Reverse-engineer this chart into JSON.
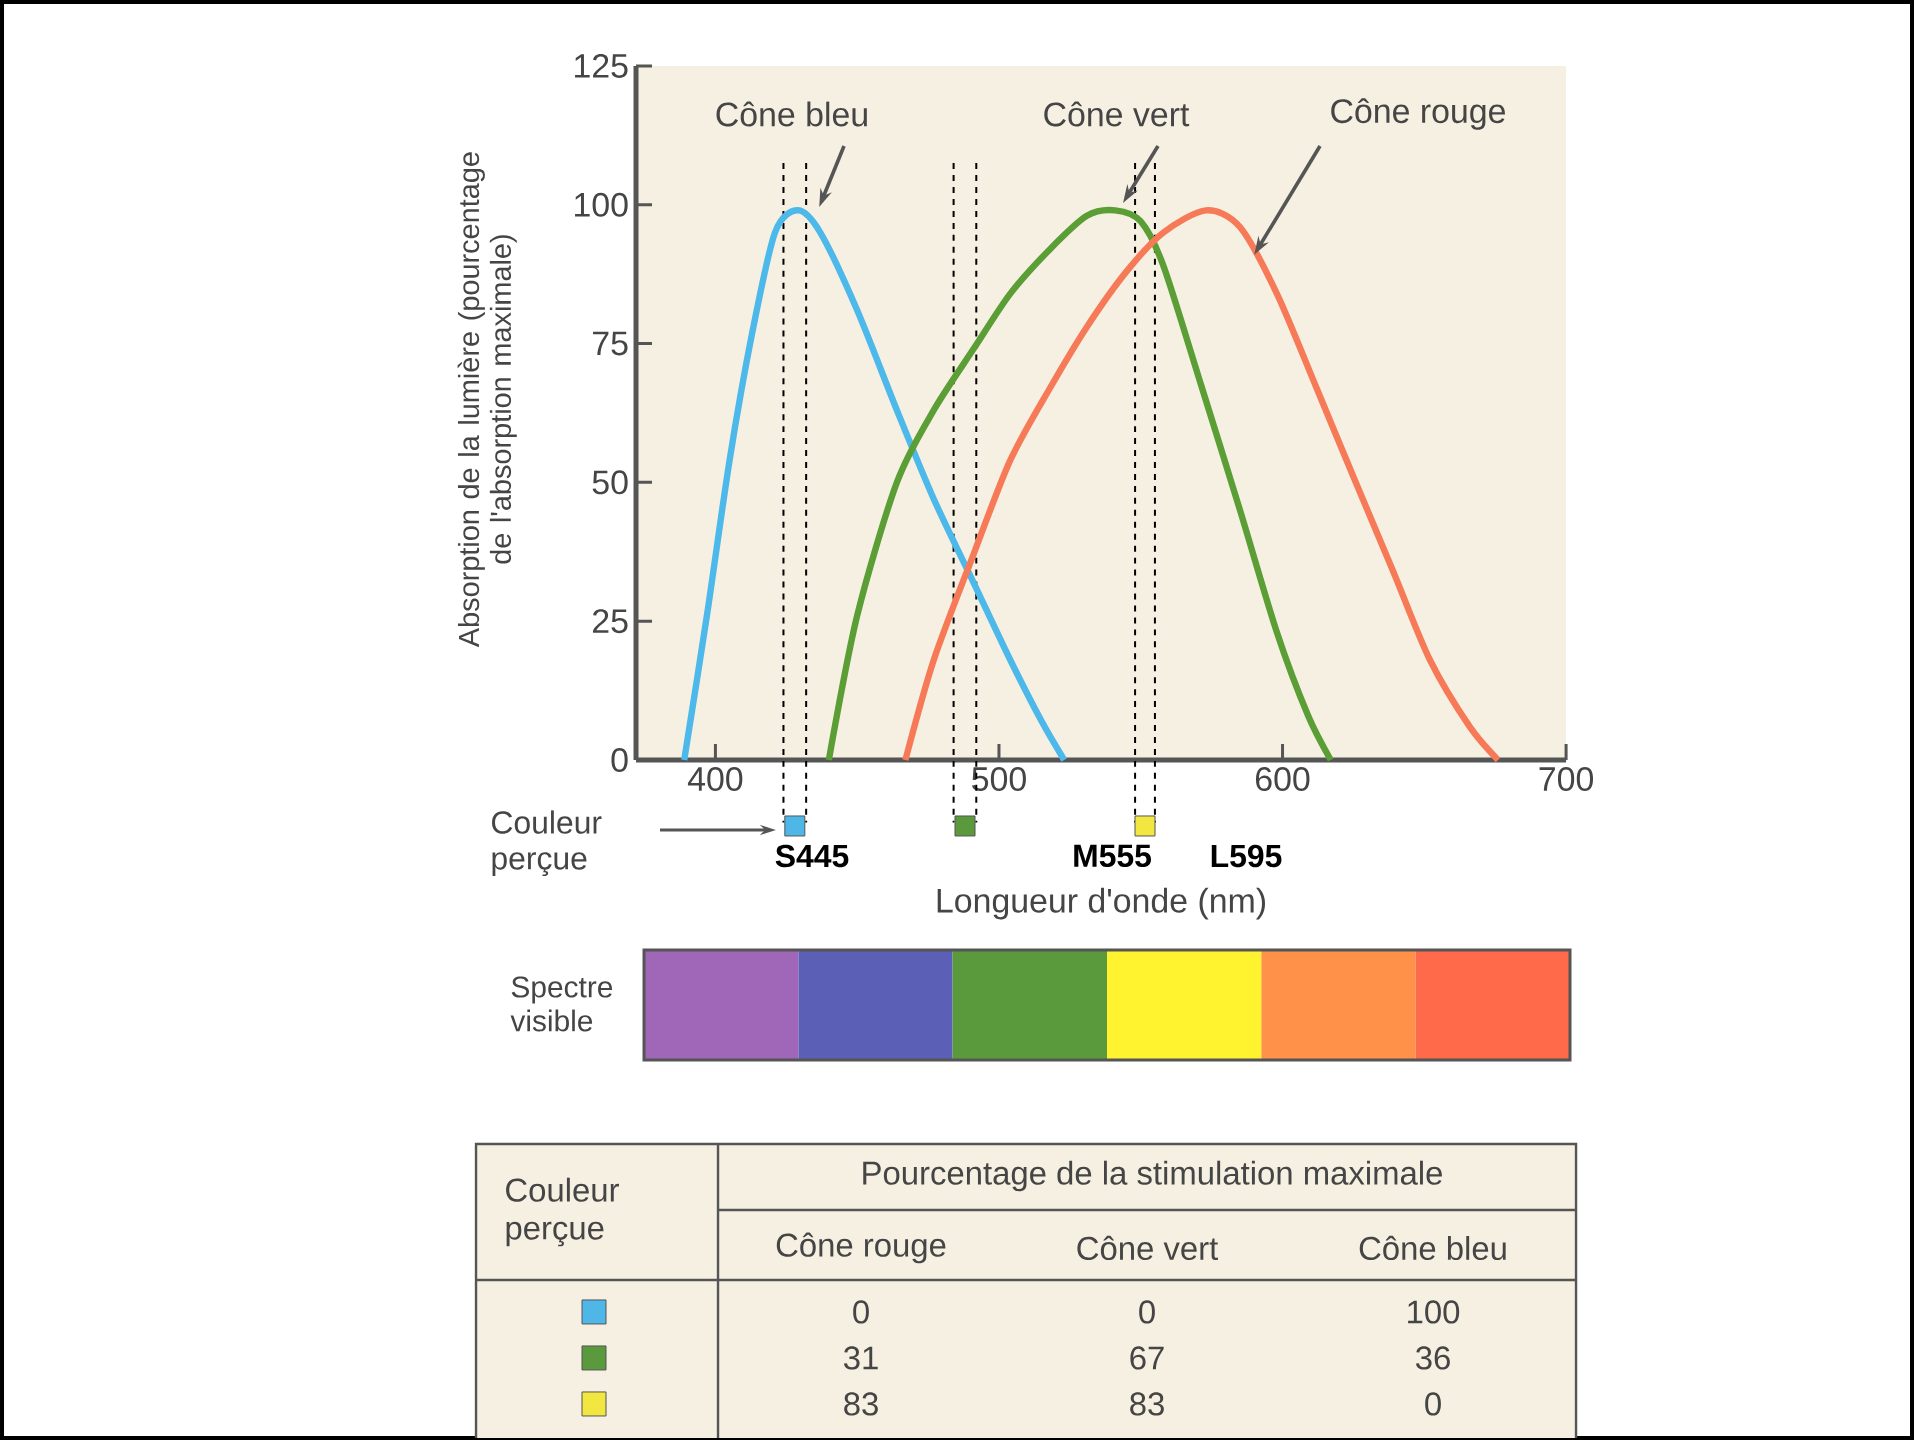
{
  "chart_data": [
    {
      "type": "line",
      "xlabel": "Longueur d'onde (nm)",
      "ylabel": "Absorption de la lumière (pourcentage de l'absorption maximale)",
      "xlim": [
        372,
        700
      ],
      "ylim": [
        0,
        125
      ],
      "xticks": [
        400,
        500,
        600,
        700
      ],
      "yticks": [
        0,
        25,
        50,
        75,
        100,
        125
      ],
      "series": [
        {
          "color": "#4db8ea",
          "x": [
            389,
            397,
            405,
            413,
            421,
            429,
            437,
            450,
            464,
            477,
            491,
            504,
            515,
            523
          ],
          "values": [
            0,
            26,
            54,
            77,
            95,
            99,
            95,
            81,
            63,
            47,
            32,
            18,
            7,
            0
          ]
        },
        {
          "color": "#5a9e35",
          "x": [
            440,
            450,
            464,
            477,
            491,
            504,
            518,
            531,
            541,
            550,
            558,
            571,
            585,
            598,
            609,
            617
          ],
          "values": [
            0,
            26,
            50,
            63,
            74,
            84,
            92,
            98,
            99,
            97,
            89,
            68,
            45,
            23,
            8,
            0
          ]
        },
        {
          "color": "#f77a58",
          "x": [
            467,
            477,
            491,
            504,
            518,
            531,
            545,
            558,
            573,
            585,
            598,
            612,
            625,
            639,
            652,
            666,
            676
          ],
          "values": [
            0,
            18,
            37,
            54,
            67,
            78,
            88,
            95,
            99,
            96,
            84,
            67,
            51,
            34,
            18,
            6,
            0
          ]
        }
      ],
      "ref_lines": [
        {
          "axis": "x",
          "value": 424,
          "line_style": "dashed"
        },
        {
          "axis": "x",
          "value": 432,
          "line_style": "dashed"
        },
        {
          "axis": "x",
          "value": 484,
          "line_style": "dashed"
        },
        {
          "axis": "x",
          "value": 492,
          "line_style": "dashed"
        },
        {
          "axis": "x",
          "value": 548,
          "line_style": "dashed"
        },
        {
          "axis": "x",
          "value": 555,
          "line_style": "dashed"
        }
      ],
      "annotations": [
        "Cône bleu",
        "Cône vert",
        {
          "text": "Cône rouge",
          "x": 590,
          "y": 91
        },
        "S445",
        "M555",
        "L595",
        "Couleur perçue",
        "Spectre visible"
      ]
    },
    {
      "type": "heatmap",
      "title": "Pourcentage de la stimulation maximale",
      "ylabel": "Couleur perçue",
      "categories": [
        "Cône rouge",
        "Cône vert",
        "Cône bleu"
      ],
      "y_categories": [
        null,
        null,
        null
      ],
      "data_labels": true,
      "cells": [
        [
          0,
          0,
          100
        ],
        [
          31,
          67,
          36
        ],
        [
          83,
          83,
          0
        ]
      ]
    }
  ]
}
